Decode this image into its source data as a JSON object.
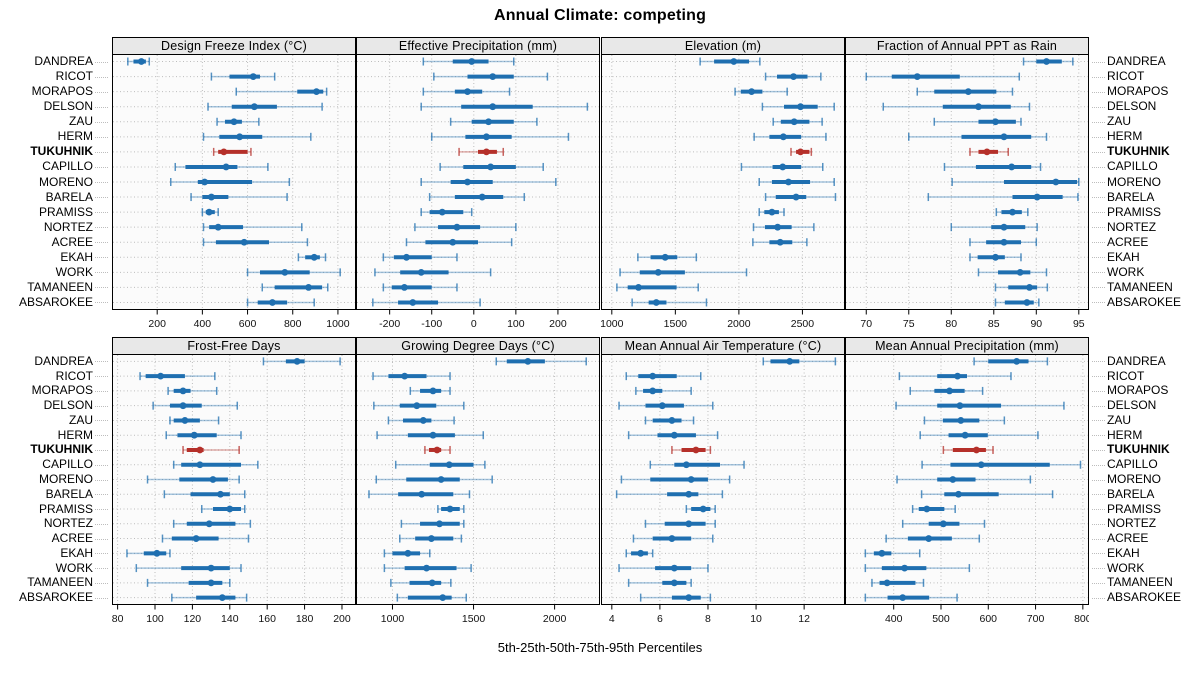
{
  "title": "Annual Climate: competing",
  "caption": "5th-25th-50th-75th-95th Percentiles",
  "colors": {
    "interval": "#1f6fb0",
    "highlight": "#b5302a",
    "panel_bg": "#fbfbfb",
    "strip_bg": "#e8e8e8",
    "grid": "#bdbdbd"
  },
  "chart_data": {
    "type": "interval-dotplot",
    "percentiles": [
      5,
      25,
      50,
      75,
      95
    ],
    "highlight_site": "TUKUHNIK",
    "sites": [
      "DANDREA",
      "RICOT",
      "MORAPOS",
      "DELSON",
      "ZAU",
      "HERM",
      "TUKUHNIK",
      "CAPILLO",
      "MORENO",
      "BARELA",
      "PRAMISS",
      "NORTEZ",
      "ACREE",
      "EKAH",
      "WORK",
      "TAMANEEN",
      "ABSAROKEE"
    ],
    "panels": [
      {
        "title": "Design Freeze Index (°C)",
        "xlim": [
          0,
          1080
        ],
        "ticks": [
          200,
          400,
          600,
          800,
          1000
        ],
        "values": {
          "DANDREA": [
            70,
            95,
            130,
            150,
            165
          ],
          "RICOT": [
            440,
            520,
            625,
            655,
            720
          ],
          "MORAPOS": [
            550,
            820,
            905,
            935,
            950
          ],
          "DELSON": [
            425,
            530,
            630,
            730,
            930
          ],
          "ZAU": [
            465,
            500,
            540,
            575,
            650
          ],
          "HERM": [
            405,
            475,
            565,
            665,
            880
          ],
          "TUKUHNIK": [
            450,
            470,
            495,
            600,
            615
          ],
          "CAPILLO": [
            280,
            325,
            505,
            555,
            690
          ],
          "MORENO": [
            260,
            380,
            410,
            620,
            785
          ],
          "BARELA": [
            350,
            400,
            440,
            515,
            775
          ],
          "PRAMISS": [
            400,
            415,
            430,
            455,
            470
          ],
          "NORTEZ": [
            405,
            430,
            470,
            580,
            840
          ],
          "ACREE": [
            405,
            460,
            585,
            695,
            865
          ],
          "EKAH": [
            825,
            855,
            895,
            920,
            945
          ],
          "WORK": [
            600,
            655,
            765,
            875,
            1010
          ],
          "TAMANEEN": [
            665,
            720,
            870,
            930,
            955
          ],
          "ABSAROKEE": [
            600,
            645,
            710,
            775,
            895
          ]
        }
      },
      {
        "title": "Effective Precipitation (mm)",
        "xlim": [
          -280,
          300
        ],
        "ticks": [
          -200,
          -100,
          0,
          100,
          200
        ],
        "values": {
          "DANDREA": [
            -120,
            -50,
            -5,
            35,
            95
          ],
          "RICOT": [
            -95,
            -15,
            45,
            95,
            175
          ],
          "MORAPOS": [
            -120,
            -45,
            -15,
            20,
            85
          ],
          "DELSON": [
            -125,
            -30,
            45,
            140,
            270
          ],
          "ZAU": [
            -55,
            -5,
            35,
            95,
            150
          ],
          "HERM": [
            -100,
            -20,
            30,
            90,
            225
          ],
          "TUKUHNIK": [
            -35,
            10,
            30,
            55,
            70
          ],
          "CAPILLO": [
            -80,
            -25,
            40,
            100,
            165
          ],
          "MORENO": [
            -125,
            -55,
            -15,
            45,
            195
          ],
          "BARELA": [
            -105,
            -45,
            20,
            70,
            120
          ],
          "PRAMISS": [
            -125,
            -105,
            -75,
            -25,
            -5
          ],
          "NORTEZ": [
            -140,
            -85,
            -40,
            15,
            100
          ],
          "ACREE": [
            -160,
            -115,
            -50,
            10,
            90
          ],
          "EKAH": [
            -215,
            -190,
            -160,
            -100,
            -40
          ],
          "WORK": [
            -235,
            -175,
            -125,
            -60,
            40
          ],
          "TAMANEEN": [
            -215,
            -195,
            -165,
            -100,
            -40
          ],
          "ABSAROKEE": [
            -240,
            -180,
            -145,
            -85,
            15
          ]
        }
      },
      {
        "title": "Elevation (m)",
        "xlim": [
          915,
          2835
        ],
        "ticks": [
          1000,
          1500,
          2000,
          2500
        ],
        "values": {
          "DANDREA": [
            1695,
            1805,
            1960,
            2080,
            2165
          ],
          "RICOT": [
            2210,
            2300,
            2430,
            2540,
            2645
          ],
          "MORAPOS": [
            1970,
            2015,
            2100,
            2185,
            2380
          ],
          "DELSON": [
            2185,
            2355,
            2485,
            2620,
            2750
          ],
          "ZAU": [
            2270,
            2330,
            2435,
            2555,
            2655
          ],
          "HERM": [
            2120,
            2240,
            2350,
            2490,
            2685
          ],
          "TUKUHNIK": [
            2410,
            2450,
            2485,
            2555,
            2570
          ],
          "CAPILLO": [
            2020,
            2265,
            2345,
            2490,
            2660
          ],
          "MORENO": [
            2160,
            2260,
            2390,
            2560,
            2750
          ],
          "BARELA": [
            2210,
            2290,
            2450,
            2530,
            2760
          ],
          "PRAMISS": [
            2160,
            2200,
            2260,
            2315,
            2355
          ],
          "NORTEZ": [
            2115,
            2205,
            2305,
            2415,
            2590
          ],
          "ACREE": [
            2110,
            2240,
            2325,
            2420,
            2535
          ],
          "EKAH": [
            1205,
            1305,
            1420,
            1515,
            1665
          ],
          "WORK": [
            1065,
            1220,
            1365,
            1575,
            2060
          ],
          "TAMANEEN": [
            1040,
            1125,
            1210,
            1510,
            1680
          ],
          "ABSAROKEE": [
            1160,
            1290,
            1350,
            1430,
            1745
          ]
        }
      },
      {
        "title": "Fraction of Annual PPT as Rain",
        "xlim": [
          67.5,
          96.2
        ],
        "ticks": [
          70,
          75,
          80,
          85,
          90,
          95
        ],
        "values": {
          "DANDREA": [
            88.5,
            90,
            91.2,
            93,
            94.3
          ],
          "RICOT": [
            70,
            73,
            76,
            81,
            88
          ],
          "MORAPOS": [
            76,
            78,
            82,
            85.3,
            87.2
          ],
          "DELSON": [
            72,
            79,
            83.2,
            87,
            89.2
          ],
          "ZAU": [
            78,
            83.2,
            85.2,
            87.6,
            88.2
          ],
          "HERM": [
            75,
            81.2,
            86.2,
            89.4,
            91.2
          ],
          "TUKUHNIK": [
            82.2,
            83.2,
            84.2,
            85.5,
            86.7
          ],
          "CAPILLO": [
            79.2,
            82.9,
            87.1,
            89.4,
            90.5
          ],
          "MORENO": [
            80.1,
            86.2,
            92.3,
            94.8,
            95
          ],
          "BARELA": [
            77.3,
            87.2,
            90.1,
            93.1,
            94.9
          ],
          "PRAMISS": [
            85.3,
            85.9,
            87.2,
            88.3,
            89
          ],
          "NORTEZ": [
            80,
            84.7,
            86.2,
            88.7,
            90.1
          ],
          "ACREE": [
            82.2,
            84.1,
            86.2,
            88.2,
            90
          ],
          "EKAH": [
            82.2,
            83.1,
            85.2,
            86.3,
            88.2
          ],
          "WORK": [
            83.2,
            85.5,
            88.1,
            89.3,
            91.2
          ],
          "TAMANEEN": [
            85.2,
            86.7,
            89.2,
            90.1,
            91.3
          ],
          "ABSAROKEE": [
            85.2,
            86.3,
            88.9,
            89.7,
            90.3
          ]
        }
      },
      {
        "title": "Frost-Free Days",
        "xlim": [
          77,
          207.5
        ],
        "ticks": [
          80,
          100,
          120,
          140,
          160,
          180,
          200
        ],
        "values": {
          "DANDREA": [
            158,
            170,
            176,
            180,
            199
          ],
          "RICOT": [
            92,
            95,
            103,
            116,
            132
          ],
          "MORAPOS": [
            107,
            110,
            115,
            119,
            133
          ],
          "DELSON": [
            99,
            108,
            115,
            125,
            144
          ],
          "ZAU": [
            108,
            110,
            116,
            124,
            134
          ],
          "HERM": [
            106,
            112,
            121,
            133,
            146
          ],
          "TUKUHNIK": [
            115,
            117,
            124,
            126,
            145
          ],
          "CAPILLO": [
            110,
            114,
            124,
            146,
            155
          ],
          "MORENO": [
            96,
            113,
            131,
            139,
            145
          ],
          "BARELA": [
            105,
            119,
            135,
            140,
            148
          ],
          "PRAMISS": [
            125,
            131,
            140,
            146,
            148
          ],
          "NORTEZ": [
            110,
            117,
            129,
            143,
            151
          ],
          "ACREE": [
            104,
            109,
            122,
            134,
            150
          ],
          "EKAH": [
            85,
            94,
            101,
            106,
            108
          ],
          "WORK": [
            90,
            114,
            130,
            140,
            146
          ],
          "TAMANEEN": [
            96,
            118,
            130,
            136,
            140
          ],
          "ABSAROKEE": [
            109,
            122,
            136,
            143,
            149
          ]
        }
      },
      {
        "title": "Growing Degree Days (°C)",
        "xlim": [
          775,
          2280
        ],
        "ticks": [
          1000,
          1500,
          2000
        ],
        "values": {
          "DANDREA": [
            1640,
            1705,
            1835,
            1940,
            2195
          ],
          "RICOT": [
            880,
            975,
            1075,
            1210,
            1355
          ],
          "MORAPOS": [
            1110,
            1170,
            1250,
            1300,
            1355
          ],
          "DELSON": [
            885,
            1045,
            1150,
            1270,
            1440
          ],
          "ZAU": [
            975,
            1065,
            1190,
            1240,
            1380
          ],
          "HERM": [
            905,
            1095,
            1250,
            1385,
            1560
          ],
          "TUKUHNIK": [
            1200,
            1225,
            1275,
            1300,
            1355
          ],
          "CAPILLO": [
            1020,
            1230,
            1350,
            1500,
            1570
          ],
          "MORENO": [
            900,
            1085,
            1300,
            1415,
            1615
          ],
          "BARELA": [
            855,
            1035,
            1180,
            1375,
            1475
          ],
          "PRAMISS": [
            1280,
            1300,
            1355,
            1415,
            1440
          ],
          "NORTEZ": [
            1055,
            1170,
            1290,
            1415,
            1440
          ],
          "ACREE": [
            1045,
            1140,
            1240,
            1375,
            1425
          ],
          "EKAH": [
            950,
            1000,
            1095,
            1170,
            1230
          ],
          "WORK": [
            950,
            1075,
            1210,
            1395,
            1485
          ],
          "TAMANEEN": [
            990,
            1105,
            1245,
            1300,
            1360
          ],
          "ABSAROKEE": [
            1030,
            1095,
            1310,
            1365,
            1455
          ]
        }
      },
      {
        "title": "Mean Annual Air Temperature (°C)",
        "xlim": [
          3.55,
          13.7
        ],
        "ticks": [
          4,
          6,
          8,
          10,
          12
        ],
        "values": {
          "DANDREA": [
            10.3,
            10.6,
            11.4,
            11.8,
            13.3
          ],
          "RICOT": [
            4.6,
            5.1,
            5.7,
            6.7,
            7.7
          ],
          "MORAPOS": [
            5.0,
            5.3,
            5.7,
            6.1,
            7.3
          ],
          "DELSON": [
            4.3,
            5.4,
            6.1,
            7.0,
            8.2
          ],
          "ZAU": [
            5.4,
            5.7,
            6.5,
            6.9,
            7.4
          ],
          "HERM": [
            4.7,
            5.9,
            6.6,
            7.5,
            8.4
          ],
          "TUKUHNIK": [
            6.5,
            6.9,
            7.5,
            7.9,
            8.1
          ],
          "CAPILLO": [
            5.6,
            6.6,
            7.1,
            8.5,
            9.5
          ],
          "MORENO": [
            4.4,
            5.6,
            7.3,
            8.0,
            8.9
          ],
          "BARELA": [
            4.2,
            6.3,
            7.2,
            7.6,
            8.6
          ],
          "PRAMISS": [
            7.1,
            7.3,
            7.8,
            8.1,
            8.3
          ],
          "NORTEZ": [
            5.4,
            6.2,
            7.2,
            7.9,
            8.3
          ],
          "ACREE": [
            4.9,
            5.7,
            6.5,
            7.3,
            8.2
          ],
          "EKAH": [
            4.6,
            4.8,
            5.2,
            5.5,
            5.7
          ],
          "WORK": [
            4.3,
            5.8,
            6.6,
            7.3,
            8.0
          ],
          "TAMANEEN": [
            4.7,
            6.1,
            6.6,
            7.1,
            7.3
          ],
          "ABSAROKEE": [
            5.2,
            6.5,
            7.2,
            7.7,
            8.1
          ]
        }
      },
      {
        "title": "Mean Annual Precipitation (mm)",
        "xlim": [
          297,
          813
        ],
        "ticks": [
          400,
          500,
          600,
          700,
          800
        ],
        "values": {
          "DANDREA": [
            570,
            600,
            660,
            685,
            725
          ],
          "RICOT": [
            412,
            492,
            535,
            555,
            648
          ],
          "MORAPOS": [
            435,
            486,
            518,
            550,
            588
          ],
          "DELSON": [
            405,
            492,
            540,
            627,
            760
          ],
          "ZAU": [
            465,
            504,
            542,
            581,
            634
          ],
          "HERM": [
            456,
            516,
            551,
            599,
            705
          ],
          "TUKUHNIK": [
            505,
            525,
            575,
            595,
            610
          ],
          "CAPILLO": [
            460,
            520,
            585,
            730,
            795
          ],
          "MORENO": [
            407,
            492,
            525,
            573,
            689
          ],
          "BARELA": [
            459,
            507,
            537,
            622,
            736
          ],
          "PRAMISS": [
            440,
            453,
            470,
            507,
            530
          ],
          "NORTEZ": [
            419,
            474,
            505,
            539,
            592
          ],
          "ACREE": [
            384,
            430,
            474,
            523,
            581
          ],
          "EKAH": [
            340,
            358,
            375,
            395,
            455
          ],
          "WORK": [
            340,
            375,
            423,
            469,
            560
          ],
          "TAMANEEN": [
            354,
            370,
            386,
            446,
            463
          ],
          "ABSAROKEE": [
            340,
            387,
            419,
            475,
            534
          ]
        }
      }
    ]
  }
}
